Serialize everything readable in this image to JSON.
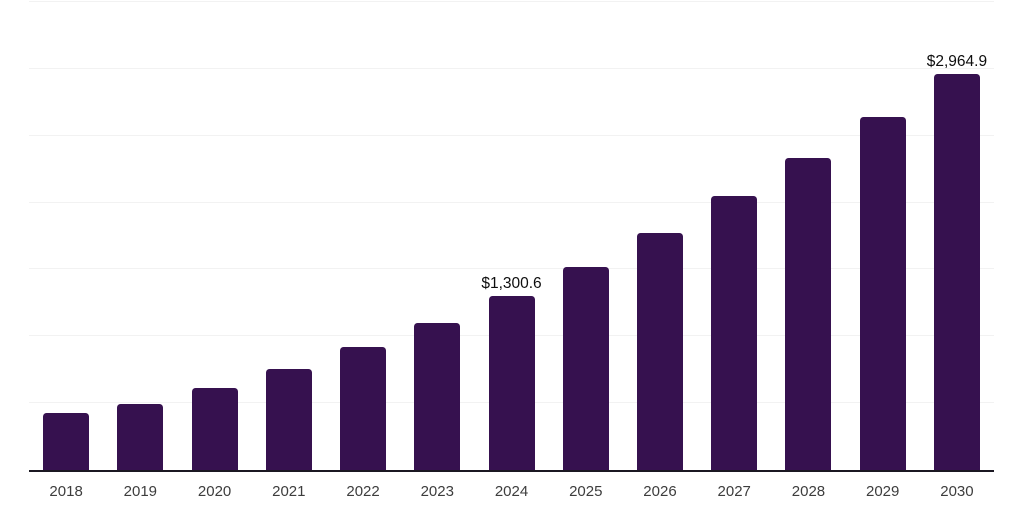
{
  "chart_data": {
    "type": "bar",
    "title": "",
    "xlabel": "",
    "ylabel": "",
    "categories": [
      "2018",
      "2019",
      "2020",
      "2021",
      "2022",
      "2023",
      "2024",
      "2025",
      "2026",
      "2027",
      "2028",
      "2029",
      "2030"
    ],
    "values": [
      424,
      491,
      617,
      758,
      921,
      1100,
      1300.6,
      1516,
      1776,
      2051,
      2333,
      2638,
      2964.9
    ],
    "bar_labels": [
      "",
      "",
      "",
      "",
      "",
      "",
      "$1,300.6",
      "",
      "",
      "",
      "",
      "",
      "$2,964.9"
    ],
    "ylim": [
      0,
      3500
    ],
    "gridline_step": 500,
    "grid": true,
    "legend": false,
    "y_axis_labels_visible": false
  },
  "style": {
    "bar_color": "#36114F",
    "axis_line_color": "#1B1822",
    "gridline_color": "#F2F2F2",
    "data_label_color": "#0E0E0E",
    "x_label_color": "#3D3D3D",
    "background_color": "#FFFFFF"
  }
}
